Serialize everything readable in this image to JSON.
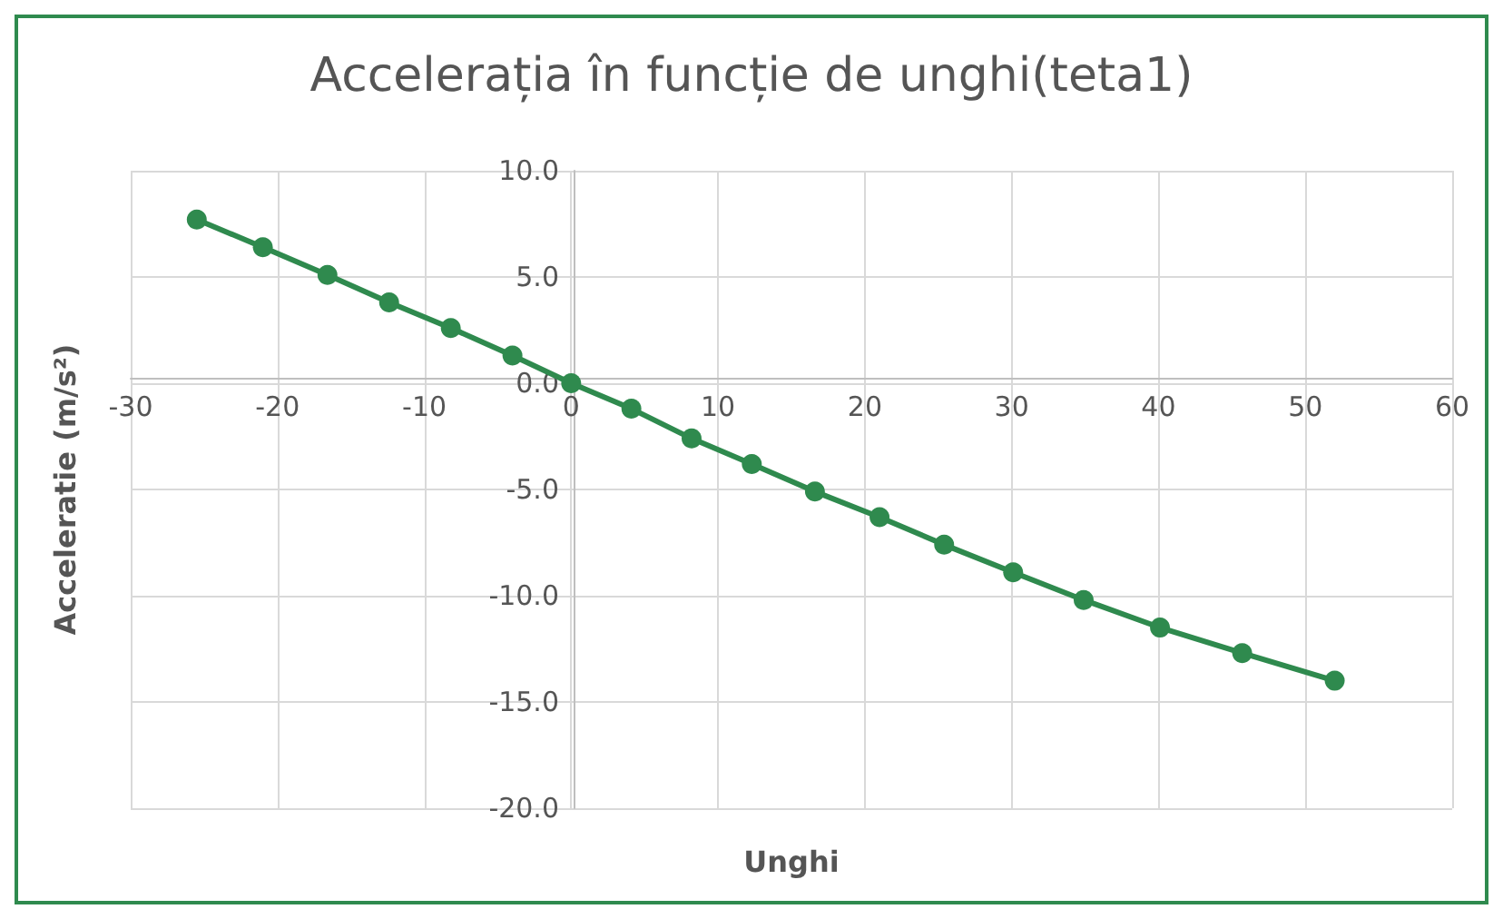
{
  "chart_data": {
    "type": "line",
    "title": "Accelerația în funcție de unghi(teta1)",
    "xlabel": "Unghi",
    "ylabel": "Acceleratie (m/s²)",
    "x": [
      -25.5,
      -21.0,
      -16.6,
      -12.4,
      -8.2,
      -4.0,
      0,
      4.1,
      8.2,
      12.3,
      16.6,
      21.0,
      25.4,
      30.1,
      34.9,
      40.1,
      45.7,
      52.0
    ],
    "series": [
      {
        "color": "#2f8a4e",
        "values": [
          7.7,
          6.4,
          5.1,
          3.8,
          2.6,
          1.3,
          0,
          -1.2,
          -2.6,
          -3.8,
          -5.1,
          -6.3,
          -7.6,
          -8.9,
          -10.2,
          -11.5,
          -12.7,
          -14.0
        ]
      }
    ],
    "xlim": [
      -30,
      60
    ],
    "xticks": [
      -30,
      -20,
      -10,
      0,
      10,
      20,
      30,
      40,
      50,
      60
    ],
    "ylim": [
      -20,
      10
    ],
    "yticks": [
      {
        "value": -20,
        "label": "-20.0"
      },
      {
        "value": -15,
        "label": "-15.0"
      },
      {
        "value": -10,
        "label": "-10.0"
      },
      {
        "value": -5,
        "label": "-5.0"
      },
      {
        "value": 0,
        "label": "0.0"
      },
      {
        "value": 5,
        "label": "5.0"
      },
      {
        "value": 10,
        "label": "10.0"
      }
    ],
    "grid": true,
    "marker": "circle",
    "line_style": "solid"
  }
}
